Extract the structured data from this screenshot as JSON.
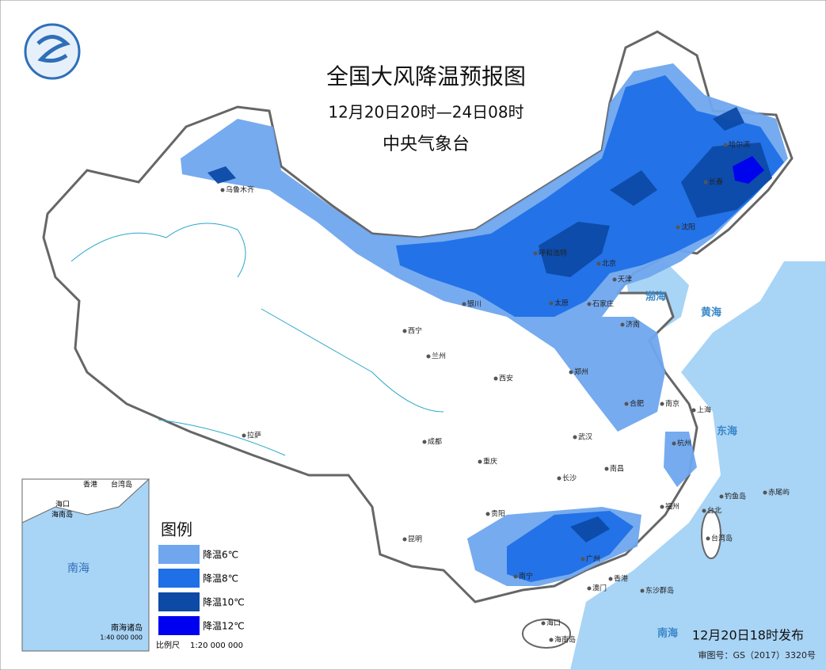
{
  "header": {
    "title": "全国大风降温预报图",
    "subtitle": "12月20日20时—24日08时",
    "issuer": "中央气象台"
  },
  "legend": {
    "title": "图例",
    "items": [
      {
        "label": "降温6℃",
        "color": "#6fa6ee"
      },
      {
        "label": "降温8℃",
        "color": "#1f6fe6"
      },
      {
        "label": "降温10℃",
        "color": "#0d4aa6"
      },
      {
        "label": "降温12℃",
        "color": "#0000f0"
      }
    ]
  },
  "cities": [
    "乌鲁木齐",
    "哈尔滨",
    "长春",
    "沈阳",
    "呼和浩特",
    "北京",
    "天津",
    "银川",
    "太原",
    "石家庄",
    "济南",
    "西宁",
    "兰州",
    "郑州",
    "西安",
    "合肥",
    "南京",
    "上海",
    "拉萨",
    "成都",
    "武汉",
    "重庆",
    "杭州",
    "长沙",
    "南昌",
    "福州",
    "台北",
    "贵阳",
    "昆明",
    "南宁",
    "广州",
    "澳门",
    "香港",
    "海口",
    "台湾岛",
    "东沙群岛",
    "海南岛",
    "钓鱼岛",
    "赤尾屿"
  ],
  "seas": [
    "渤海",
    "黄海",
    "东海",
    "南海"
  ],
  "inset": {
    "labels": [
      "香港",
      "台湾岛",
      "海口",
      "海南岛",
      "南海"
    ],
    "title": "南海诸岛",
    "scale": "1:40 000 000"
  },
  "footer": {
    "release": "12月20日18时发布",
    "review_number": "审图号：GS（2017）3320号",
    "scale_label": "比例尺",
    "scale": "1:20 000 000"
  }
}
